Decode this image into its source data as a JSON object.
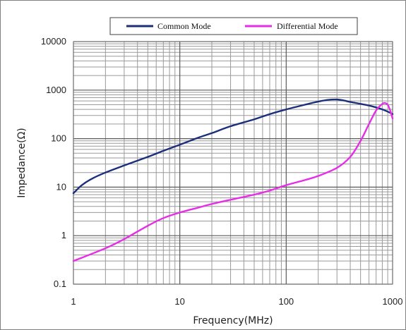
{
  "chart_data": {
    "type": "line",
    "title": "",
    "xlabel": "Frequency(MHz)",
    "ylabel": "Impedance(Ω)",
    "xscale": "log",
    "yscale": "log",
    "xlim": [
      1,
      1000
    ],
    "ylim": [
      0.1,
      10000
    ],
    "xticks": [
      1,
      10,
      100,
      1000
    ],
    "xtick_labels": [
      "1",
      "10",
      "100",
      "1000"
    ],
    "yticks": [
      0.1,
      1,
      10,
      100,
      1000,
      10000
    ],
    "ytick_labels": [
      "0.1",
      "1",
      "10",
      "100",
      "1000",
      "10000"
    ],
    "grid": true,
    "legend_position": "top",
    "series": [
      {
        "name": "Common Mode",
        "color": "#1b2f7a",
        "x": [
          1,
          1.2,
          1.5,
          2,
          3,
          5,
          7,
          10,
          15,
          20,
          30,
          50,
          70,
          100,
          150,
          200,
          250,
          300,
          350,
          400,
          500,
          600,
          700,
          800,
          900,
          1000
        ],
        "y": [
          7.5,
          11,
          15,
          20,
          28,
          42,
          56,
          75,
          105,
          130,
          180,
          250,
          320,
          400,
          500,
          580,
          630,
          640,
          610,
          570,
          520,
          480,
          440,
          400,
          360,
          320
        ]
      },
      {
        "name": "Differential Mode",
        "color": "#e62ee6",
        "x": [
          1,
          2,
          3,
          5,
          7,
          10,
          15,
          20,
          30,
          50,
          70,
          100,
          150,
          200,
          300,
          400,
          500,
          600,
          700,
          800,
          850,
          900,
          950,
          1000
        ],
        "y": [
          0.3,
          0.55,
          0.85,
          1.6,
          2.3,
          3,
          3.8,
          4.5,
          5.5,
          7,
          8.5,
          11,
          14,
          17,
          25,
          42,
          90,
          200,
          380,
          520,
          540,
          500,
          380,
          260
        ]
      }
    ]
  }
}
